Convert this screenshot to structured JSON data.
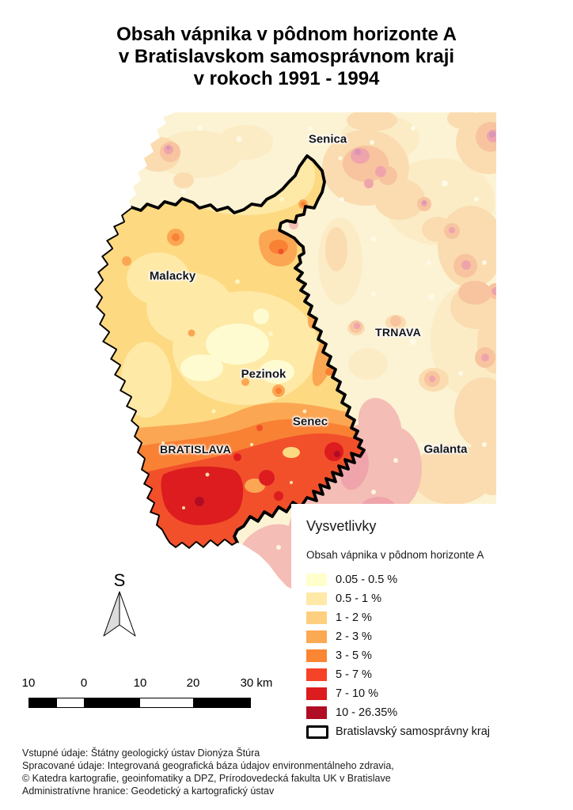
{
  "title": {
    "lines": [
      "Obsah vápnika v pôdnom horizonte A",
      "v Bratislavskom samosprávnom kraji",
      "v rokoch 1991 - 1994"
    ]
  },
  "map": {
    "city_labels": [
      {
        "text": "Senica"
      },
      {
        "text": "Malacky"
      },
      {
        "text": "TRNAVA"
      },
      {
        "text": "Pezinok"
      },
      {
        "text": "Senec"
      },
      {
        "text": "BRATISLAVA"
      },
      {
        "text": "Galanta"
      }
    ],
    "boundary_color": "#000000"
  },
  "legend": {
    "title": "Vysvetlivky",
    "subtitle": "Obsah vápnika v pôdnom horizonte A",
    "items": [
      {
        "color": "#FFFFCC",
        "label": "0.05 - 0.5 %"
      },
      {
        "color": "#FFE9A6",
        "label": "0.5 - 1 %"
      },
      {
        "color": "#FDCF7E",
        "label": "1 - 2 %"
      },
      {
        "color": "#FCA953",
        "label": "2 - 3 %"
      },
      {
        "color": "#FA8532",
        "label": "3 - 5 %"
      },
      {
        "color": "#F64226",
        "label": "5 - 7 %"
      },
      {
        "color": "#DC1C1E",
        "label": "7 - 10 %"
      },
      {
        "color": "#B00C24",
        "label": "10 - 26.35%"
      }
    ],
    "outline_item": {
      "label": "Bratislavský samosprávny kraj",
      "stroke": "#000000"
    }
  },
  "north_arrow": {
    "label": "S"
  },
  "scalebar": {
    "labels": [
      "10",
      "0",
      "10",
      "20",
      "30 km"
    ]
  },
  "footer": {
    "lines": [
      "Vstupné údaje: Štátny geologický ústav Dionýza Štúra",
      "Spracované údaje: Integrovaná geografická báza údajov environmentálneho zdravia,",
      "© Katedra kartografie, geoinfomatiky a DPZ, Prírodovedecká fakulta UK v Bratislave",
      "Administratívne hranice: Geodetický a kartografický ústav"
    ]
  }
}
